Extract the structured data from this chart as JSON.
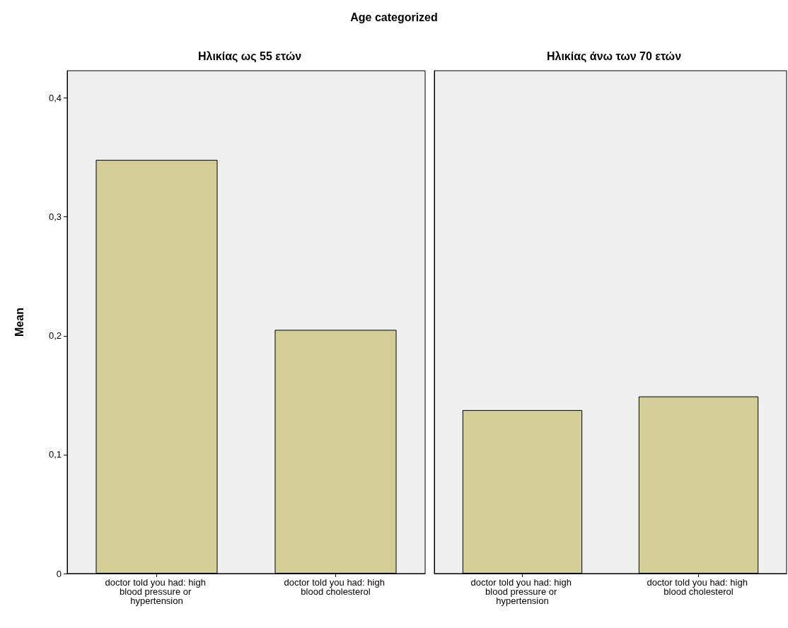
{
  "chart_data": [
    {
      "type": "bar",
      "title": "Age categorized",
      "subtitle": "Ηλικίας ως 55 ετών",
      "ylabel": "Mean",
      "categories": [
        "doctor told you had: high blood pressure or hypertension",
        "doctor told you had: high blood cholesterol"
      ],
      "values": [
        0.348,
        0.205
      ],
      "color": "#d3ce98",
      "ylim": [
        0,
        0.423
      ],
      "yticks": [
        0,
        {
          "value": 0.1,
          "label": "0,1"
        },
        {
          "value": 0.2,
          "label": "0,2"
        },
        {
          "value": 0.3,
          "label": "0,3"
        },
        {
          "value": 0.4,
          "label": "0,4"
        }
      ],
      "grid": false
    },
    {
      "type": "bar",
      "subtitle": "Ηλικίας άνω των 70 ετών",
      "categories": [
        "doctor told you had: high blood pressure or hypertension",
        "doctor told you had: high blood cholesterol"
      ],
      "values": [
        0.1375,
        0.149
      ],
      "color": "#d3ce98",
      "ylim": [
        0,
        0.423
      ],
      "grid": false,
      "tick_labels": "x"
    }
  ]
}
